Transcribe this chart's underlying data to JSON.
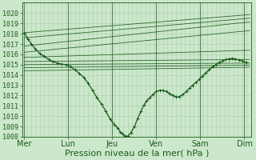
{
  "bg_color": "#cce8cc",
  "grid_color": "#aaccaa",
  "line_color": "#1a5c1a",
  "xlabel": "Pression niveau de la mer( hPa )",
  "ylim": [
    1008,
    1021
  ],
  "yticks": [
    1008,
    1009,
    1010,
    1011,
    1012,
    1013,
    1014,
    1015,
    1016,
    1017,
    1018,
    1019,
    1020
  ],
  "xtick_labels": [
    "Mer",
    "Lun",
    "Jeu",
    "Ven",
    "Sam",
    "Dim"
  ],
  "xtick_positions": [
    0,
    1,
    2,
    3,
    4,
    5
  ],
  "xlabel_fontsize": 8,
  "ytick_fontsize": 6,
  "xtick_fontsize": 7,
  "fan_pivot_x": 1.85,
  "fan_pivot_y": 1015.05,
  "fan_lines_left": [
    1018.1,
    1017.6,
    1016.8,
    1016.2,
    1015.7,
    1015.3,
    1015.0,
    1014.7,
    1014.4
  ],
  "fan_lines_right": [
    1019.85,
    1019.5,
    1019.15,
    1018.3,
    1016.4,
    1015.5,
    1015.15,
    1014.95,
    1014.75
  ],
  "main_line_x": [
    0.0,
    0.08,
    0.16,
    0.25,
    0.35,
    0.45,
    0.55,
    0.65,
    0.75,
    0.85,
    0.95,
    1.05,
    1.15,
    1.25,
    1.35,
    1.45,
    1.55,
    1.65,
    1.75,
    1.85,
    1.95,
    2.05,
    2.12,
    2.18,
    2.22,
    2.28,
    2.35,
    2.42,
    2.5,
    2.58,
    2.65,
    2.72,
    2.78,
    2.85,
    2.92,
    3.0,
    3.08,
    3.15,
    3.22,
    3.3,
    3.38,
    3.45,
    3.52,
    3.6,
    3.68,
    3.75,
    3.82,
    3.9,
    3.98,
    4.05,
    4.12,
    4.2,
    4.28,
    4.35,
    4.42,
    4.5,
    4.58,
    4.65,
    4.72,
    4.8,
    4.88,
    4.95,
    5.05
  ],
  "main_line_y": [
    1018.1,
    1017.5,
    1017.0,
    1016.5,
    1016.1,
    1015.8,
    1015.5,
    1015.3,
    1015.15,
    1015.05,
    1015.0,
    1014.8,
    1014.5,
    1014.15,
    1013.75,
    1013.2,
    1012.5,
    1011.8,
    1011.2,
    1010.5,
    1009.7,
    1009.2,
    1008.85,
    1008.5,
    1008.3,
    1008.1,
    1008.05,
    1008.4,
    1009.0,
    1009.8,
    1010.5,
    1011.1,
    1011.5,
    1011.8,
    1012.1,
    1012.4,
    1012.5,
    1012.5,
    1012.4,
    1012.2,
    1012.0,
    1011.85,
    1011.9,
    1012.1,
    1012.4,
    1012.7,
    1013.0,
    1013.3,
    1013.6,
    1013.9,
    1014.2,
    1014.5,
    1014.8,
    1015.0,
    1015.2,
    1015.35,
    1015.5,
    1015.55,
    1015.6,
    1015.55,
    1015.45,
    1015.35,
    1015.2
  ]
}
